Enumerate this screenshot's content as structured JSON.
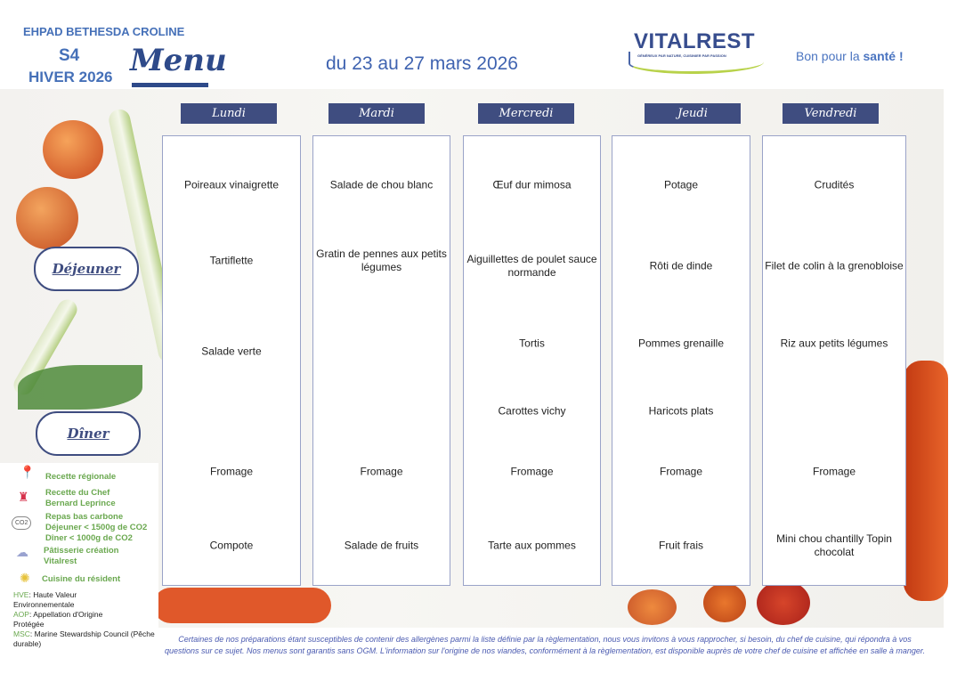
{
  "header": {
    "organization": "EHPAD BETHESDA CROLINE",
    "week": "S4",
    "season": "HIVER 2026",
    "title": "Menu",
    "dates": "du 23 au 27 mars 2026"
  },
  "logo": {
    "name": "VITALREST",
    "tagline": "GÉNÉREUX PAR NATURE, CUISINIER PAR PASSION"
  },
  "slogan": {
    "prefix": "Bon pour la ",
    "emphasis": "santé !"
  },
  "meals": {
    "lunch": "Déjeuner",
    "dinner": "Dîner"
  },
  "days": [
    {
      "name": "Lundi",
      "items": [
        "Poireaux vinaigrette",
        "Tartiflette",
        "Salade verte",
        "",
        "Fromage",
        "Compote"
      ]
    },
    {
      "name": "Mardi",
      "items": [
        "Salade de chou blanc",
        "Gratin de pennes aux petits légumes",
        "",
        "",
        "Fromage",
        "Salade de fruits"
      ]
    },
    {
      "name": "Mercredi",
      "items": [
        "Œuf dur mimosa",
        "Aiguillettes de poulet sauce normande",
        "Tortis",
        "Carottes vichy",
        "Fromage",
        "Tarte aux pommes"
      ]
    },
    {
      "name": "Jeudi",
      "items": [
        "Potage",
        "Rôti de dinde",
        "Pommes grenaille",
        "Haricots plats",
        "Fromage",
        "Fruit frais"
      ]
    },
    {
      "name": "Vendredi",
      "items": [
        "Crudités",
        "Filet de colin à la grenobloise",
        "Riz aux petits légumes",
        "",
        "Fromage",
        "Mini chou chantilly Topin chocolat"
      ]
    }
  ],
  "legend": {
    "regional": "Recette régionale",
    "chef": "Recette du Chef Bernard Leprince",
    "carbon_title": "Repas bas carbone",
    "carbon_lunch": "Déjeuner < 1500g de CO2",
    "carbon_dinner": "Dîner < 1000g de CO2",
    "carbon_icon_text": "CO2",
    "pastry": "Pâtisserie création Vitalrest",
    "resident": "Cuisine du résident",
    "hve_key": "HVE",
    "hve": ": Haute Valeur Environnementale",
    "aop_key": "AOP",
    "aop": ": Appellation d'Origine Protégée",
    "msc_key": "MSC",
    "msc": ": Marine Stewardship Council (Pêche durable)"
  },
  "footer": "Certaines de nos préparations étant susceptibles de contenir des allergènes parmi la liste définie par la règlementation, nous vous invitons à vous rapprocher, si besoin, du chef de cuisine, qui répondra à vos questions sur ce sujet. Nos menus sont garantis sans OGM. L'information sur l'origine de nos viandes, conformément à la règlementation, est disponible auprès de votre chef de cuisine et affichée en salle à manger.",
  "colors": {
    "accent": "#3f4d80",
    "title": "#4570b8",
    "legend": "#6aa84f"
  }
}
